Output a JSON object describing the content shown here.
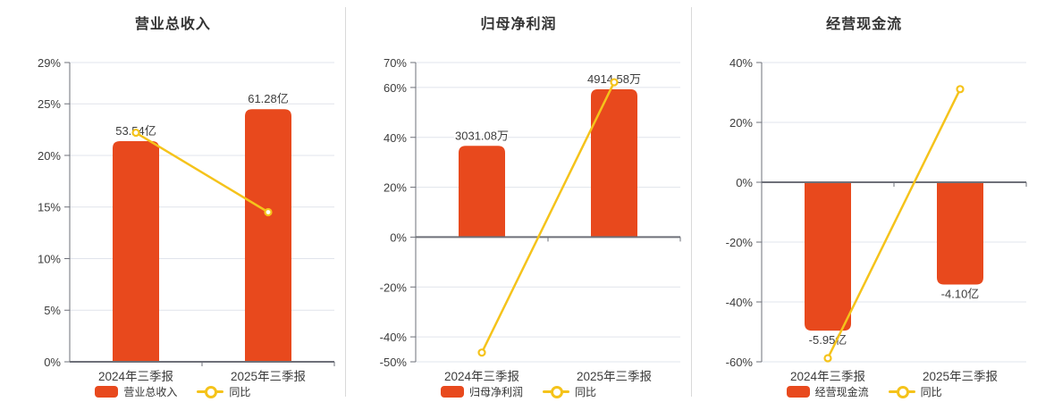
{
  "colors": {
    "bar": "#e8491d",
    "line": "#f5c31b",
    "title_text": "#333333",
    "axis_text": "#3d3d3d",
    "label_text": "#3d3d3d",
    "axis_line": "#6e7079",
    "grid_line": "#e0e4ec",
    "divider": "#d9d9d9",
    "background": "#ffffff"
  },
  "chart_data": [
    {
      "type": "bar",
      "title": "营业总收入",
      "categories": [
        "2024年三季报",
        "2025年三季报"
      ],
      "bar_series": {
        "name": "营业总收入",
        "unit": "亿",
        "values": [
          53.54,
          61.28
        ],
        "labels": [
          "53.54亿",
          "61.28亿"
        ]
      },
      "line_series": {
        "name": "同比",
        "unit": "%",
        "values": [
          22.2,
          14.5
        ]
      },
      "y_axis": {
        "format": "percent",
        "min": 0,
        "max": 29,
        "ticks": [
          29,
          25,
          20,
          15,
          10,
          5,
          0
        ]
      },
      "bar_axis": {
        "min": 0,
        "max": 72.6
      },
      "legend": {
        "bar": "营业总收入",
        "line": "同比",
        "position": "bottom"
      },
      "grid": true
    },
    {
      "type": "bar",
      "title": "归母净利润",
      "categories": [
        "2024年三季报",
        "2025年三季报"
      ],
      "bar_series": {
        "name": "归母净利润",
        "unit": "万",
        "values": [
          3031.08,
          4914.58
        ],
        "labels": [
          "3031.08万",
          "4914.58万"
        ]
      },
      "line_series": {
        "name": "同比",
        "unit": "%",
        "values": [
          -46.3,
          62.1
        ]
      },
      "y_axis": {
        "format": "percent",
        "min": -50,
        "max": 70,
        "ticks": [
          70,
          60,
          40,
          20,
          0,
          -20,
          -40,
          -50
        ]
      },
      "bar_axis": {
        "min": 0,
        "max": 5800
      },
      "legend": {
        "bar": "归母净利润",
        "line": "同比",
        "position": "bottom"
      },
      "grid": true
    },
    {
      "type": "bar",
      "title": "经营现金流",
      "categories": [
        "2024年三季报",
        "2025年三季报"
      ],
      "bar_series": {
        "name": "经营现金流",
        "unit": "亿",
        "values": [
          -5.95,
          -4.1
        ],
        "labels": [
          "-5.95亿",
          "-4.10亿"
        ]
      },
      "line_series": {
        "name": "同比",
        "unit": "%",
        "values": [
          -58.8,
          31.1
        ]
      },
      "y_axis": {
        "format": "percent",
        "min": -60,
        "max": 40,
        "ticks": [
          40,
          20,
          0,
          -20,
          -40,
          -60
        ]
      },
      "bar_axis": {
        "min": -7.2,
        "max": 0
      },
      "legend": {
        "bar": "经营现金流",
        "line": "同比",
        "position": "bottom"
      },
      "grid": true
    }
  ]
}
